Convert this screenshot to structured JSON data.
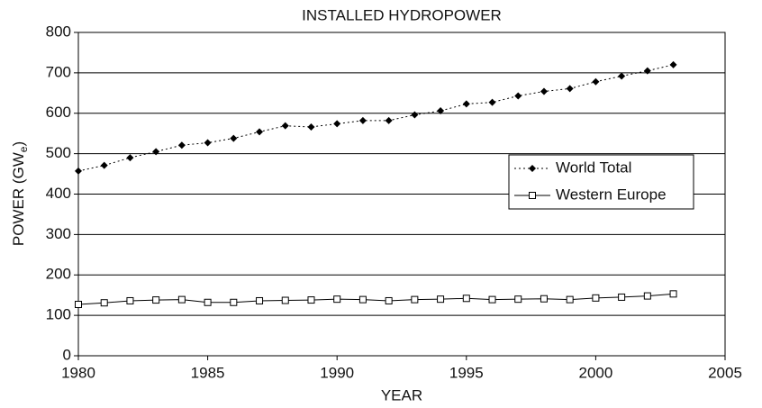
{
  "chart_data": {
    "type": "line",
    "title": "INSTALLED HYDROPOWER",
    "x_label": "YEAR",
    "y_label_parts": [
      "POWER (GW",
      "e",
      ")"
    ],
    "x": [
      1980,
      1981,
      1982,
      1983,
      1984,
      1985,
      1986,
      1987,
      1988,
      1989,
      1990,
      1991,
      1992,
      1993,
      1994,
      1995,
      1996,
      1997,
      1998,
      1999,
      2000,
      2001,
      2002,
      2003
    ],
    "series": [
      {
        "name": "World Total",
        "color": "#000000",
        "line_style": "dotted",
        "marker": "diamond",
        "values": [
          457,
          471,
          490,
          505,
          521,
          527,
          538,
          554,
          569,
          566,
          574,
          582,
          582,
          596,
          606,
          623,
          627,
          643,
          654,
          661,
          678,
          692,
          705,
          720
        ]
      },
      {
        "name": "Western Europe",
        "color": "#000000",
        "line_style": "solid",
        "marker": "open-square",
        "values": [
          127,
          131,
          136,
          138,
          139,
          132,
          132,
          136,
          137,
          138,
          140,
          139,
          136,
          139,
          140,
          142,
          139,
          140,
          141,
          139,
          143,
          145,
          148,
          153
        ]
      }
    ],
    "xlim": [
      1980,
      2005
    ],
    "xticks": [
      1980,
      1985,
      1990,
      1995,
      2000,
      2005
    ],
    "ylim": [
      0,
      800
    ],
    "yticks": [
      0,
      100,
      200,
      300,
      400,
      500,
      600,
      700,
      800
    ],
    "grid": true,
    "legend": "right"
  }
}
